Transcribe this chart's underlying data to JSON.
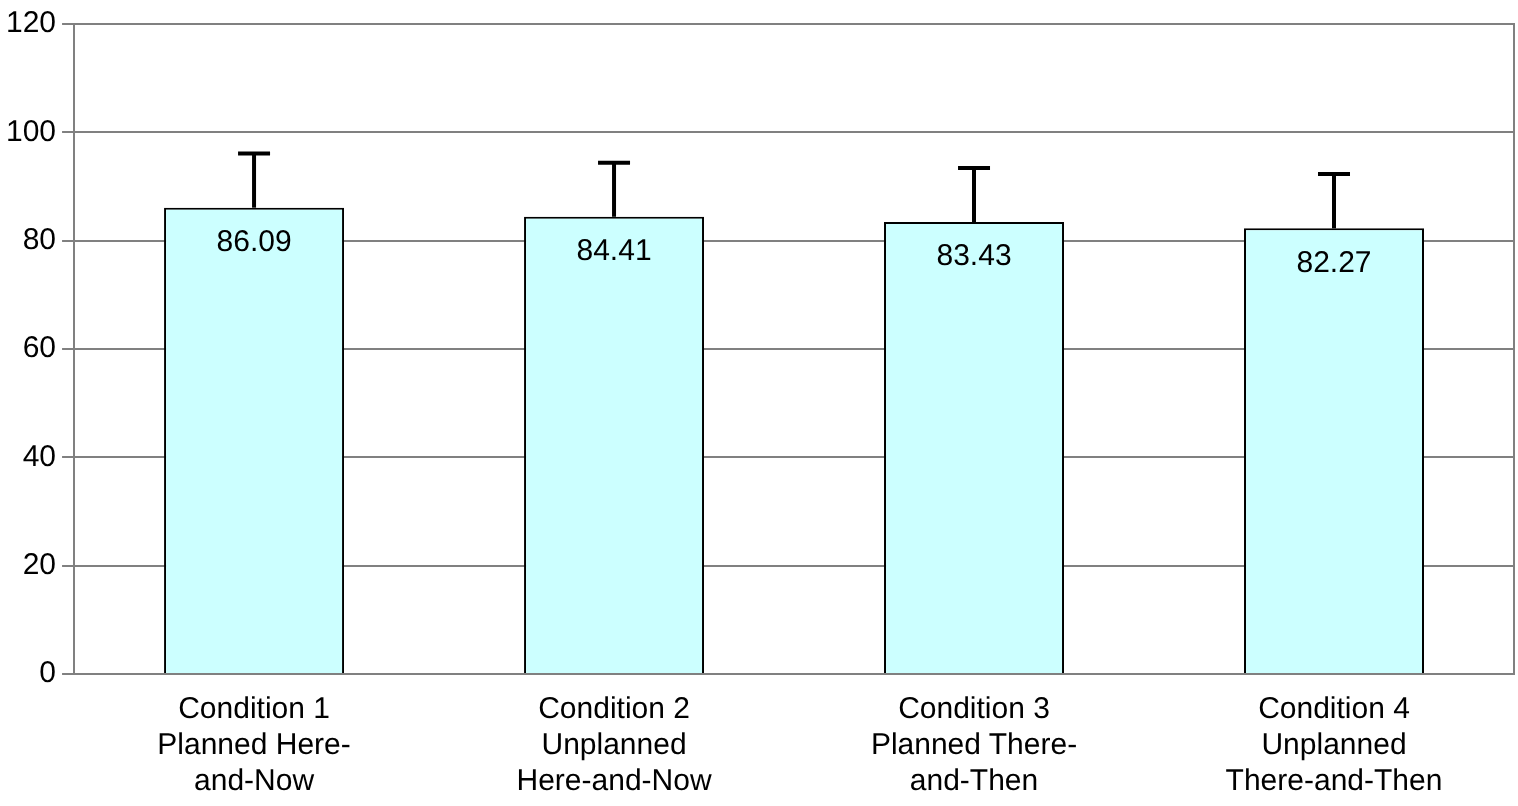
{
  "chart_data": {
    "type": "bar",
    "categories": [
      "Condition 1\nPlanned Here-\nand-Now",
      "Condition 2\nUnplanned\nHere-and-Now",
      "Condition 3\nPlanned There-\nand-Then",
      "Condition 4\nUnplanned\nThere-and-Then"
    ],
    "values": [
      86.09,
      84.41,
      83.43,
      82.27
    ],
    "errors": [
      [
        86.09,
        96.1
      ],
      [
        84.41,
        94.4
      ],
      [
        83.43,
        93.4
      ],
      [
        82.27,
        92.3
      ]
    ],
    "color": "#ccffff",
    "ylim": [
      0,
      120
    ],
    "yticks": [
      0,
      20,
      40,
      60,
      80,
      100,
      120
    ],
    "grid": "y",
    "data_labels": true,
    "legend": false
  }
}
